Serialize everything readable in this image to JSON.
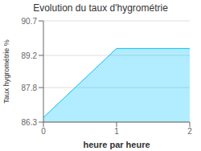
{
  "chart_data": {
    "type": "area",
    "title": "Evolution du taux d'hygrométrie",
    "xlabel": "heure par heure",
    "ylabel": "Taux hygrométrie %",
    "x": [
      0,
      1,
      2
    ],
    "values": [
      86.5,
      89.5,
      89.5
    ],
    "color": "#00bfff",
    "xlim": [
      0,
      2
    ],
    "xticks": [
      0,
      1,
      2
    ],
    "ylim": [
      86.3,
      90.7
    ],
    "yticks": [
      86.3,
      87.8,
      89.2,
      90.7
    ],
    "grid": true
  }
}
